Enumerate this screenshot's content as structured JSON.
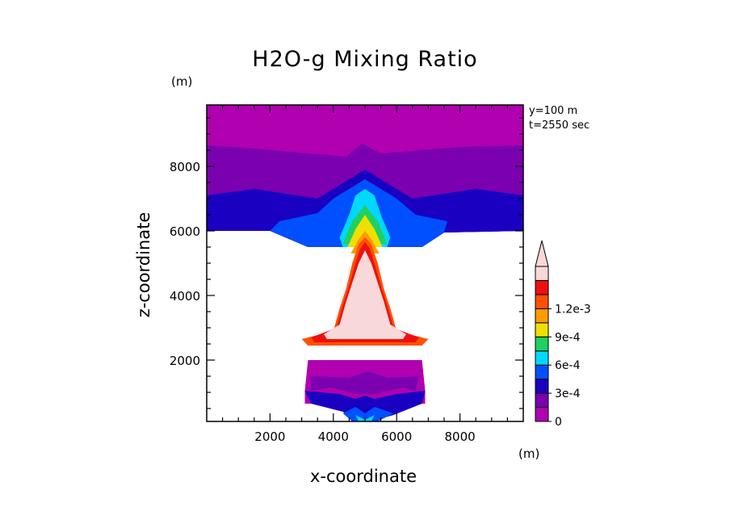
{
  "chart_data": {
    "type": "heatmap",
    "title": "H2O-g Mixing Ratio",
    "xlabel": "x-coordinate",
    "ylabel": "z-coordinate",
    "x_unit": "(m)",
    "y_unit": "(m)",
    "annotations": [
      "y=100 m",
      "t=2550 sec"
    ],
    "xlim": [
      0,
      10000
    ],
    "ylim": [
      100,
      9900
    ],
    "x_ticks": [
      2000,
      4000,
      6000,
      8000
    ],
    "y_ticks": [
      2000,
      4000,
      6000,
      8000
    ],
    "x_tick_labels": [
      "2000",
      "4000",
      "6000",
      "8000"
    ],
    "y_tick_labels": [
      "2000",
      "4000",
      "6000",
      "8000"
    ],
    "colorbar": {
      "levels": [
        0,
        0.00015,
        0.0003,
        0.00045,
        0.0006,
        0.00075,
        0.0009,
        0.00105,
        0.0012
      ],
      "labels": [
        "0",
        "3e-4",
        "6e-4",
        "9e-4",
        "1.2e-3"
      ],
      "label_values": [
        0,
        0.0003,
        0.0006,
        0.0009,
        0.0012
      ],
      "colors": [
        "#b000b0",
        "#7a00b0",
        "#1a00c0",
        "#0050ff",
        "#00d8ff",
        "#20d060",
        "#f0e000",
        "#ff9a00",
        "#ff5000",
        "#ee1010",
        "#f8d8d8"
      ]
    },
    "bands": [
      {
        "level": 0,
        "polygons": [
          [
            [
              0,
              9900
            ],
            [
              10000,
              9900
            ],
            [
              10000,
              6000
            ],
            [
              7500,
              5950
            ],
            [
              6800,
              5500
            ],
            [
              3200,
              5500
            ],
            [
              2000,
              6000
            ],
            [
              0,
              6000
            ]
          ],
          [
            [
              3200,
              2000
            ],
            [
              6800,
              2000
            ],
            [
              6900,
              1050
            ],
            [
              6900,
              650
            ],
            [
              3100,
              650
            ],
            [
              3100,
              1050
            ]
          ]
        ]
      },
      {
        "level": 1,
        "polygons": [
          [
            [
              0,
              8650
            ],
            [
              1500,
              8550
            ],
            [
              3800,
              8350
            ],
            [
              4400,
              8300
            ],
            [
              4900,
              8700
            ],
            [
              5500,
              8400
            ],
            [
              8000,
              8600
            ],
            [
              10000,
              8650
            ],
            [
              10000,
              6000
            ],
            [
              7500,
              5950
            ],
            [
              6800,
              5500
            ],
            [
              3200,
              5500
            ],
            [
              2000,
              6000
            ],
            [
              0,
              6000
            ]
          ],
          [
            [
              3300,
              1500
            ],
            [
              4500,
              1450
            ],
            [
              5100,
              1650
            ],
            [
              5700,
              1450
            ],
            [
              6700,
              1500
            ],
            [
              6600,
              1050
            ],
            [
              6200,
              1150
            ],
            [
              5300,
              950
            ],
            [
              4700,
              950
            ],
            [
              3900,
              1150
            ],
            [
              3300,
              1050
            ]
          ]
        ]
      },
      {
        "level": 2,
        "polygons": [
          [
            [
              0,
              7100
            ],
            [
              1500,
              7300
            ],
            [
              3500,
              7000
            ],
            [
              4500,
              7600
            ],
            [
              5000,
              7900
            ],
            [
              5500,
              7600
            ],
            [
              6500,
              7000
            ],
            [
              8500,
              7300
            ],
            [
              10000,
              7100
            ],
            [
              10000,
              6000
            ],
            [
              7500,
              5950
            ],
            [
              6800,
              5500
            ],
            [
              3200,
              5500
            ],
            [
              2000,
              6000
            ],
            [
              0,
              6000
            ]
          ],
          [
            [
              3100,
              1050
            ],
            [
              4200,
              950
            ],
            [
              4700,
              800
            ],
            [
              5000,
              900
            ],
            [
              5300,
              800
            ],
            [
              6000,
              950
            ],
            [
              6900,
              1050
            ],
            [
              6800,
              650
            ],
            [
              5900,
              300
            ],
            [
              5200,
              100
            ],
            [
              4800,
              100
            ],
            [
              4300,
              400
            ],
            [
              3300,
              650
            ]
          ]
        ]
      },
      {
        "level": 3,
        "polygons": [
          [
            [
              2300,
              6300
            ],
            [
              3500,
              6550
            ],
            [
              4000,
              7000
            ],
            [
              4500,
              7300
            ],
            [
              5000,
              7600
            ],
            [
              5500,
              7300
            ],
            [
              6000,
              7000
            ],
            [
              6600,
              6500
            ],
            [
              7600,
              6300
            ],
            [
              7500,
              5950
            ],
            [
              6800,
              5500
            ],
            [
              3200,
              5500
            ],
            [
              2000,
              6000
            ]
          ],
          [
            [
              4300,
              350
            ],
            [
              4700,
              550
            ],
            [
              5000,
              350
            ],
            [
              5300,
              550
            ],
            [
              5900,
              350
            ],
            [
              5400,
              100
            ],
            [
              4600,
              100
            ]
          ]
        ]
      },
      {
        "level": 4,
        "polygons": [
          [
            [
              4200,
              5800
            ],
            [
              4500,
              6500
            ],
            [
              4700,
              7100
            ],
            [
              5000,
              7300
            ],
            [
              5300,
              7100
            ],
            [
              5500,
              6500
            ],
            [
              5800,
              5800
            ],
            [
              5700,
              5500
            ],
            [
              4300,
              5500
            ]
          ],
          [
            [
              4700,
              300
            ],
            [
              5000,
              150
            ],
            [
              5300,
              300
            ],
            [
              5200,
              100
            ],
            [
              4800,
              100
            ]
          ]
        ]
      },
      {
        "level": 5,
        "polygons": [
          [
            [
              4300,
              5600
            ],
            [
              4600,
              6300
            ],
            [
              5000,
              6800
            ],
            [
              5400,
              6300
            ],
            [
              5700,
              5600
            ]
          ]
        ]
      },
      {
        "level": 6,
        "polygons": [
          [
            [
              4450,
              5500
            ],
            [
              4700,
              6050
            ],
            [
              5000,
              6500
            ],
            [
              5300,
              6050
            ],
            [
              5550,
              5500
            ]
          ]
        ]
      },
      {
        "level": 7,
        "polygons": [
          [
            [
              4550,
              5300
            ],
            [
              4800,
              5750
            ],
            [
              5000,
              6000
            ],
            [
              5200,
              5750
            ],
            [
              5450,
              5300
            ]
          ]
        ]
      },
      {
        "level": 8,
        "polygons": [
          [
            [
              3000,
              2650
            ],
            [
              4000,
              2900
            ],
            [
              4200,
              3600
            ],
            [
              4400,
              4200
            ],
            [
              4600,
              5000
            ],
            [
              4800,
              5600
            ],
            [
              5000,
              5800
            ],
            [
              5200,
              5600
            ],
            [
              5400,
              5000
            ],
            [
              5600,
              4200
            ],
            [
              5800,
              3600
            ],
            [
              6000,
              2900
            ],
            [
              7000,
              2650
            ],
            [
              6800,
              2450
            ],
            [
              3200,
              2450
            ]
          ]
        ]
      },
      {
        "level": 9,
        "polygons": [
          [
            [
              3300,
              2700
            ],
            [
              4100,
              3000
            ],
            [
              4300,
              3700
            ],
            [
              4500,
              4300
            ],
            [
              4700,
              5000
            ],
            [
              4850,
              5450
            ],
            [
              5000,
              5650
            ],
            [
              5150,
              5450
            ],
            [
              5300,
              5000
            ],
            [
              5500,
              4300
            ],
            [
              5700,
              3700
            ],
            [
              5900,
              3000
            ],
            [
              6700,
              2700
            ],
            [
              6600,
              2550
            ],
            [
              3400,
              2550
            ]
          ]
        ]
      },
      {
        "level": 10,
        "polygons": [
          [
            [
              3700,
              2800
            ],
            [
              4200,
              3100
            ],
            [
              4400,
              3800
            ],
            [
              4600,
              4400
            ],
            [
              4800,
              5000
            ],
            [
              4950,
              5300
            ],
            [
              5000,
              5400
            ],
            [
              5050,
              5300
            ],
            [
              5200,
              5000
            ],
            [
              5400,
              4400
            ],
            [
              5600,
              3800
            ],
            [
              5800,
              3100
            ],
            [
              6300,
              2800
            ],
            [
              6200,
              2650
            ],
            [
              3800,
              2650
            ]
          ]
        ]
      }
    ],
    "background": "#ffffff"
  }
}
